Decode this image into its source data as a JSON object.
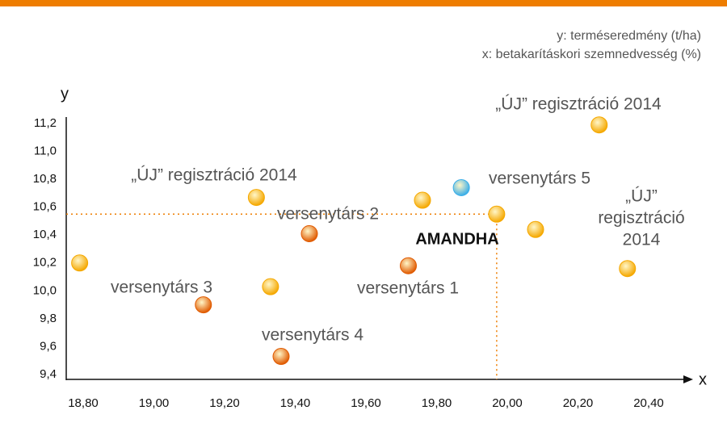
{
  "chart_data": {
    "type": "scatter",
    "notes": [
      "y: terméseredmény (t/ha)",
      "x: betakarításkori szemnedvesség (%)"
    ],
    "y_label": "y",
    "x_label": "x",
    "x": [
      18.79,
      19.14,
      19.29,
      19.33,
      19.36,
      19.44,
      19.72,
      19.76,
      19.87,
      19.97,
      20.08,
      20.26,
      20.34
    ],
    "values": [
      10.2,
      9.9,
      10.67,
      10.03,
      9.53,
      10.41,
      10.18,
      10.65,
      10.74,
      10.55,
      10.44,
      11.19,
      10.16
    ],
    "colors": [
      "#f5a800",
      "#e05a00",
      "#f5a800",
      "#f5a800",
      "#e05a00",
      "#e05a00",
      "#e05a00",
      "#f5a800",
      "#3aaee8",
      "#f5a800",
      "#f5a800",
      "#f5a800",
      "#f5a800"
    ],
    "xlim": [
      18.74,
      20.54
    ],
    "ylim": [
      9.4,
      11.3
    ],
    "xticks": [
      {
        "value": 18.8,
        "label": "18,80"
      },
      {
        "value": 19.0,
        "label": "19,00"
      },
      {
        "value": 19.2,
        "label": "19,20"
      },
      {
        "value": 19.4,
        "label": "19,40"
      },
      {
        "value": 19.6,
        "label": "19,60"
      },
      {
        "value": 19.8,
        "label": "19,80"
      },
      {
        "value": 20.0,
        "label": "20,00"
      },
      {
        "value": 20.2,
        "label": "20,20"
      },
      {
        "value": 20.4,
        "label": "20,40"
      }
    ],
    "yticks": [
      {
        "value": 9.4,
        "label": "9,4"
      },
      {
        "value": 9.6,
        "label": "9,6"
      },
      {
        "value": 9.8,
        "label": "9,8"
      },
      {
        "value": 10.0,
        "label": "10,0"
      },
      {
        "value": 10.2,
        "label": "10,2"
      },
      {
        "value": 10.4,
        "label": "10,4"
      },
      {
        "value": 10.6,
        "label": "10,6"
      },
      {
        "value": 10.8,
        "label": "10,8"
      },
      {
        "value": 11.0,
        "label": "11,0"
      },
      {
        "value": 11.2,
        "label": "11,2"
      }
    ],
    "highlight_index": 9,
    "annotations": [
      {
        "lines": [
          "„ÚJ” regisztráció 2014"
        ]
      },
      {
        "lines": [
          "„ÚJ” regisztráció 2014"
        ]
      },
      {
        "lines": [
          "„ÚJ”",
          "regisztráció",
          "2014"
        ]
      },
      {
        "lines": [
          "versenytárs 5"
        ]
      },
      {
        "lines": [
          "versenytárs 2"
        ]
      },
      {
        "lines": [
          "AMANDHA"
        ]
      },
      {
        "lines": [
          "versenytárs 1"
        ]
      },
      {
        "lines": [
          "versenytárs 3"
        ]
      },
      {
        "lines": [
          "versenytárs 4"
        ]
      }
    ]
  }
}
